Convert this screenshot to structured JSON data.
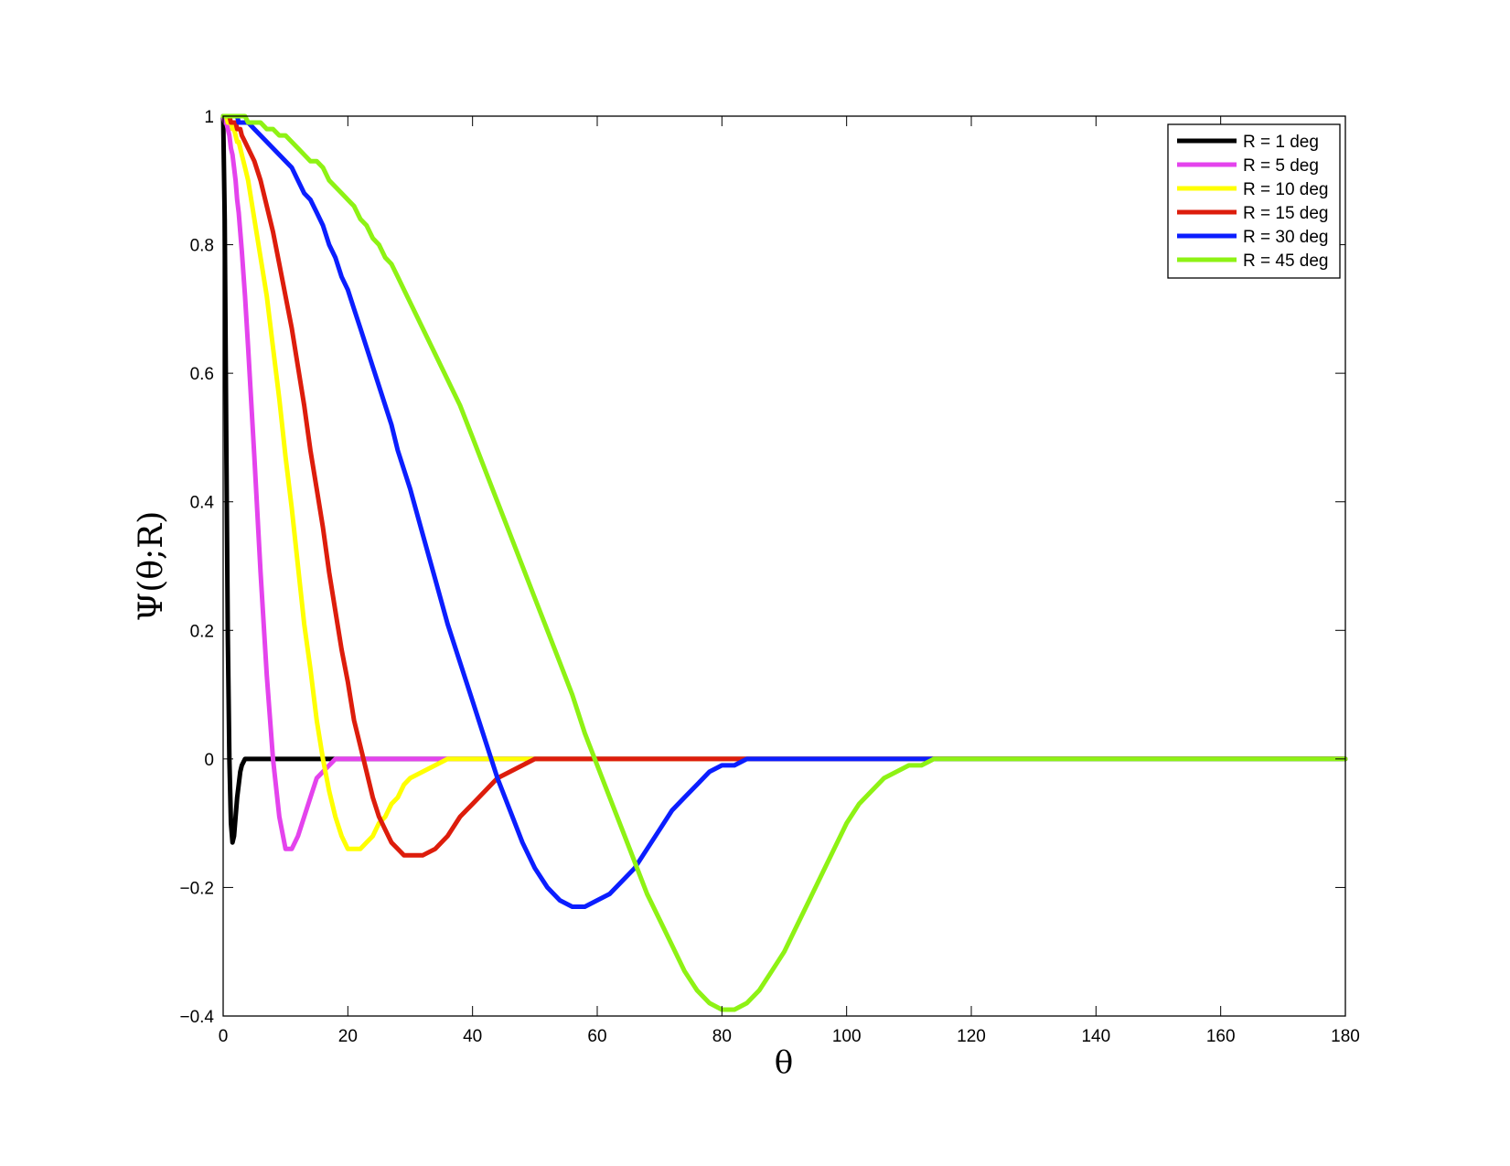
{
  "chart_data": {
    "type": "line",
    "title": "",
    "xlabel": "θ",
    "ylabel": "Ψ(θ;R)",
    "xlim": [
      0,
      180
    ],
    "ylim": [
      -0.4,
      1
    ],
    "xticks": [
      0,
      20,
      40,
      60,
      80,
      100,
      120,
      140,
      160,
      180
    ],
    "yticks": [
      -0.4,
      -0.2,
      0,
      0.2,
      0.4,
      0.6,
      0.8,
      1
    ],
    "ytick_labels": [
      "−0.4",
      "−0.2",
      "0",
      "0.2",
      "0.4",
      "0.6",
      "0.8",
      "1"
    ],
    "grid": false,
    "legend_position": "top-right",
    "x": [
      0,
      0.25,
      0.5,
      0.75,
      1,
      1.25,
      1.5,
      1.75,
      2,
      2.25,
      2.5,
      2.75,
      3,
      3.5,
      4,
      5,
      6,
      7,
      8,
      9,
      10,
      11,
      12,
      13,
      14,
      15,
      16,
      17,
      18,
      19,
      20,
      21,
      22,
      23,
      24,
      25,
      26,
      27,
      28,
      29,
      30,
      32,
      34,
      36,
      38,
      40,
      42,
      44,
      46,
      48,
      50,
      52,
      54,
      56,
      58,
      60,
      62,
      64,
      66,
      68,
      70,
      72,
      74,
      76,
      78,
      80,
      82,
      84,
      86,
      88,
      90,
      92,
      94,
      96,
      98,
      100,
      102,
      104,
      106,
      108,
      110,
      112,
      114,
      116,
      118,
      120,
      122,
      124,
      126,
      128,
      130,
      135,
      140,
      145,
      150,
      155,
      160,
      165,
      170,
      175,
      180
    ],
    "series": [
      {
        "name": "R = 1 deg",
        "color": "#000000",
        "values": [
          1,
          0.84,
          0.5,
          0.19,
          0.0,
          -0.1,
          -0.13,
          -0.12,
          -0.09,
          -0.06,
          -0.04,
          -0.02,
          -0.01,
          0,
          0,
          0,
          0,
          0,
          0,
          0,
          0,
          0,
          0,
          0,
          0,
          0,
          0,
          0,
          0,
          0,
          0,
          0,
          0,
          0,
          0,
          0,
          0,
          0,
          0,
          0,
          0,
          0,
          0,
          0,
          0,
          0,
          0,
          0,
          0,
          0,
          0,
          0,
          0,
          0,
          0,
          0,
          0,
          0,
          0,
          0,
          0,
          0,
          0,
          0,
          0,
          0,
          0,
          0,
          0,
          0,
          0,
          0,
          0,
          0,
          0,
          0,
          0,
          0,
          0,
          0,
          0,
          0,
          0,
          0,
          0,
          0,
          0,
          0,
          0,
          0,
          0,
          0,
          0,
          0,
          0,
          0,
          0,
          0,
          0,
          0,
          0
        ]
      },
      {
        "name": "R = 5 deg",
        "color": "#e443ed",
        "values": [
          1,
          0.99,
          0.99,
          0.98,
          0.97,
          0.95,
          0.94,
          0.92,
          0.9,
          0.87,
          0.85,
          0.82,
          0.79,
          0.72,
          0.64,
          0.47,
          0.29,
          0.13,
          0.0,
          -0.09,
          -0.14,
          -0.14,
          -0.12,
          -0.09,
          -0.06,
          -0.03,
          -0.02,
          -0.01,
          0,
          0,
          0,
          0,
          0,
          0,
          0,
          0,
          0,
          0,
          0,
          0,
          0,
          0,
          0,
          0,
          0,
          0,
          0,
          0,
          0,
          0,
          0,
          0,
          0,
          0,
          0,
          0,
          0,
          0,
          0,
          0,
          0,
          0,
          0,
          0,
          0,
          0,
          0,
          0,
          0,
          0,
          0,
          0,
          0,
          0,
          0,
          0,
          0,
          0,
          0,
          0,
          0,
          0,
          0,
          0,
          0,
          0,
          0,
          0,
          0,
          0,
          0,
          0,
          0,
          0,
          0,
          0,
          0,
          0,
          0,
          0,
          0
        ]
      },
      {
        "name": "R = 10 deg",
        "color": "#ffff00",
        "values": [
          1,
          1,
          1,
          0.99,
          0.99,
          0.99,
          0.98,
          0.98,
          0.97,
          0.96,
          0.96,
          0.95,
          0.94,
          0.92,
          0.9,
          0.84,
          0.78,
          0.72,
          0.64,
          0.56,
          0.47,
          0.39,
          0.3,
          0.21,
          0.14,
          0.06,
          0.0,
          -0.05,
          -0.09,
          -0.12,
          -0.14,
          -0.14,
          -0.14,
          -0.13,
          -0.12,
          -0.1,
          -0.09,
          -0.07,
          -0.06,
          -0.04,
          -0.03,
          -0.02,
          -0.01,
          0,
          0,
          0,
          0,
          0,
          0,
          0,
          0,
          0,
          0,
          0,
          0,
          0,
          0,
          0,
          0,
          0,
          0,
          0,
          0,
          0,
          0,
          0,
          0,
          0,
          0,
          0,
          0,
          0,
          0,
          0,
          0,
          0,
          0,
          0,
          0,
          0,
          0,
          0,
          0,
          0,
          0,
          0,
          0,
          0,
          0,
          0,
          0,
          0,
          0,
          0,
          0,
          0,
          0,
          0,
          0,
          0,
          0
        ]
      },
      {
        "name": "R = 15 deg",
        "color": "#dd1d0c",
        "values": [
          1,
          1,
          1,
          1,
          1,
          0.99,
          0.99,
          0.99,
          0.99,
          0.98,
          0.98,
          0.98,
          0.97,
          0.96,
          0.95,
          0.93,
          0.9,
          0.86,
          0.82,
          0.77,
          0.72,
          0.67,
          0.61,
          0.55,
          0.48,
          0.42,
          0.36,
          0.29,
          0.23,
          0.17,
          0.12,
          0.06,
          0.02,
          -0.02,
          -0.06,
          -0.09,
          -0.11,
          -0.13,
          -0.14,
          -0.15,
          -0.15,
          -0.15,
          -0.14,
          -0.12,
          -0.09,
          -0.07,
          -0.05,
          -0.03,
          -0.02,
          -0.01,
          0,
          0,
          0,
          0,
          0,
          0,
          0,
          0,
          0,
          0,
          0,
          0,
          0,
          0,
          0,
          0,
          0,
          0,
          0,
          0,
          0,
          0,
          0,
          0,
          0,
          0,
          0,
          0,
          0,
          0,
          0,
          0,
          0,
          0,
          0,
          0,
          0,
          0,
          0,
          0,
          0,
          0,
          0,
          0,
          0,
          0,
          0,
          0,
          0,
          0,
          0
        ]
      },
      {
        "name": "R = 30 deg",
        "color": "#0b1eff",
        "values": [
          1,
          1,
          1,
          1,
          1,
          1,
          1,
          1,
          1,
          1,
          0.99,
          0.99,
          0.99,
          0.99,
          0.99,
          0.98,
          0.97,
          0.96,
          0.95,
          0.94,
          0.93,
          0.92,
          0.9,
          0.88,
          0.87,
          0.85,
          0.83,
          0.8,
          0.78,
          0.75,
          0.73,
          0.7,
          0.67,
          0.64,
          0.61,
          0.58,
          0.55,
          0.52,
          0.48,
          0.45,
          0.42,
          0.35,
          0.28,
          0.21,
          0.15,
          0.09,
          0.03,
          -0.03,
          -0.08,
          -0.13,
          -0.17,
          -0.2,
          -0.22,
          -0.23,
          -0.23,
          -0.22,
          -0.21,
          -0.19,
          -0.17,
          -0.14,
          -0.11,
          -0.08,
          -0.06,
          -0.04,
          -0.02,
          -0.01,
          -0.01,
          0,
          0,
          0,
          0,
          0,
          0,
          0,
          0,
          0,
          0,
          0,
          0,
          0,
          0,
          0,
          0,
          0,
          0,
          0,
          0,
          0,
          0,
          0,
          0,
          0,
          0,
          0,
          0,
          0,
          0,
          0,
          0,
          0,
          0
        ]
      },
      {
        "name": "R = 45 deg",
        "color": "#8ef214",
        "values": [
          1,
          1,
          1,
          1,
          1,
          1,
          1,
          1,
          1,
          1,
          1,
          1,
          1,
          1,
          0.99,
          0.99,
          0.99,
          0.98,
          0.98,
          0.97,
          0.97,
          0.96,
          0.95,
          0.94,
          0.93,
          0.93,
          0.92,
          0.9,
          0.89,
          0.88,
          0.87,
          0.86,
          0.84,
          0.83,
          0.81,
          0.8,
          0.78,
          0.77,
          0.75,
          0.73,
          0.71,
          0.67,
          0.63,
          0.59,
          0.55,
          0.5,
          0.45,
          0.4,
          0.35,
          0.3,
          0.25,
          0.2,
          0.15,
          0.1,
          0.04,
          -0.01,
          -0.06,
          -0.11,
          -0.16,
          -0.21,
          -0.25,
          -0.29,
          -0.33,
          -0.36,
          -0.38,
          -0.39,
          -0.39,
          -0.38,
          -0.36,
          -0.33,
          -0.3,
          -0.26,
          -0.22,
          -0.18,
          -0.14,
          -0.1,
          -0.07,
          -0.05,
          -0.03,
          -0.02,
          -0.01,
          -0.01,
          0,
          0,
          0,
          0,
          0,
          0,
          0,
          0,
          0,
          0,
          0,
          0,
          0,
          0,
          0,
          0,
          0,
          0,
          0
        ]
      }
    ]
  }
}
